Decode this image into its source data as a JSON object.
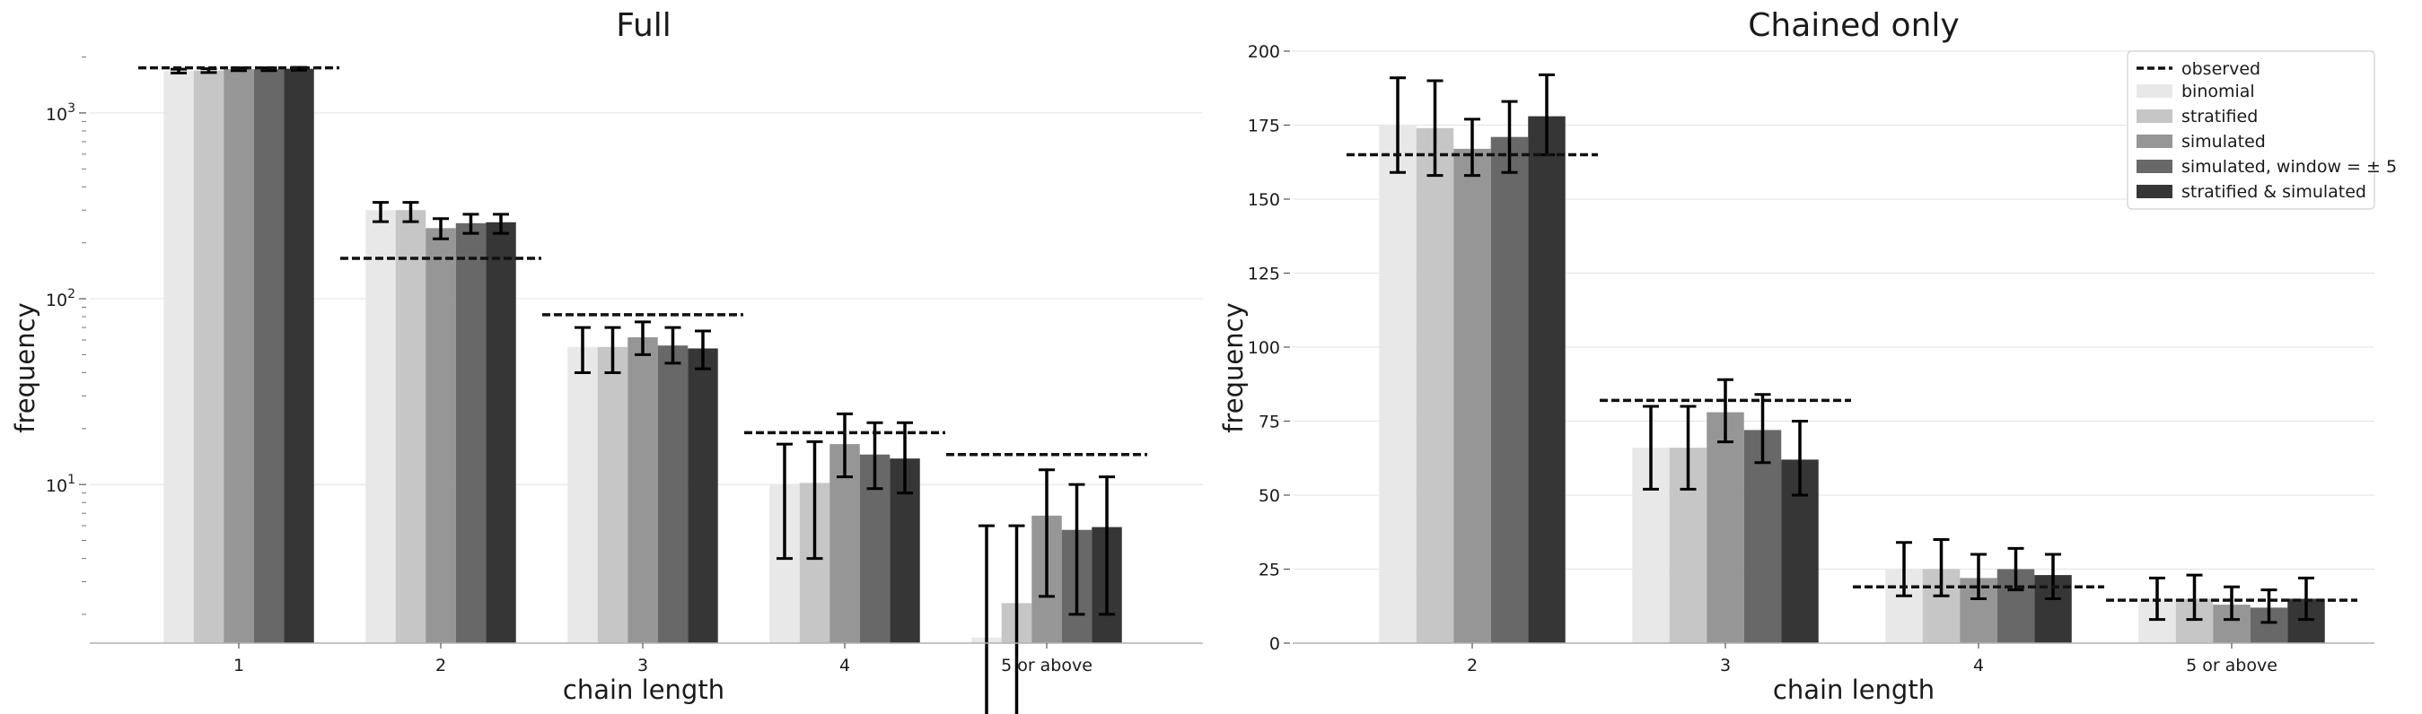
{
  "chart_data": [
    {
      "type": "bar",
      "title": "Full",
      "xlabel": "chain length",
      "ylabel": "frequency",
      "yscale": "log",
      "ylim": [
        1.4,
        2200
      ],
      "grid": "horizontal",
      "categories": [
        "1",
        "2",
        "3",
        "4",
        "5 or above"
      ],
      "ytick_labels": [
        {
          "value": 1000,
          "base": "10",
          "exp": "3"
        },
        {
          "value": 100,
          "base": "10",
          "exp": "2"
        },
        {
          "value": 10,
          "base": "10",
          "exp": "1"
        }
      ],
      "series": [
        {
          "name": "binomial",
          "color": "#e8e8e8",
          "values": [
            1680,
            300,
            55,
            10,
            1.5
          ],
          "err_low": [
            1640,
            260,
            40,
            4,
            0.5
          ],
          "err_high": [
            1720,
            330,
            70,
            16.5,
            6
          ]
        },
        {
          "name": "stratified",
          "color": "#c6c6c6",
          "values": [
            1690,
            300,
            55,
            10.2,
            2.3
          ],
          "err_low": [
            1650,
            260,
            40,
            4,
            0.5
          ],
          "err_high": [
            1730,
            330,
            70,
            17,
            6
          ]
        },
        {
          "name": "simulated",
          "color": "#969696",
          "values": [
            1720,
            240,
            62,
            16.5,
            6.8
          ],
          "err_low": [
            1690,
            210,
            50,
            11,
            2.5
          ],
          "err_high": [
            1750,
            270,
            75,
            24,
            12
          ]
        },
        {
          "name": "simulated, window = ± 5",
          "color": "#686868",
          "values": [
            1720,
            255,
            56,
            14.5,
            5.7
          ],
          "err_low": [
            1690,
            225,
            45,
            9.5,
            2
          ],
          "err_high": [
            1750,
            285,
            70,
            21.5,
            10
          ]
        },
        {
          "name": "stratified & simulated",
          "color": "#363636",
          "values": [
            1730,
            258,
            54,
            13.8,
            5.9
          ],
          "err_low": [
            1700,
            225,
            42,
            9,
            2
          ],
          "err_high": [
            1760,
            285,
            67,
            21.5,
            11
          ]
        }
      ],
      "observed": [
        1750,
        165,
        82,
        19,
        14.5
      ]
    },
    {
      "type": "bar",
      "title": "Chained only",
      "xlabel": "chain length",
      "ylabel": "frequency",
      "ylim": [
        0,
        200
      ],
      "yticks": [
        0,
        25,
        50,
        75,
        100,
        125,
        150,
        175,
        200
      ],
      "grid": "horizontal",
      "legend_position": "top-right",
      "categories": [
        "2",
        "3",
        "4",
        "5 or above"
      ],
      "series": [
        {
          "name": "binomial",
          "color": "#e8e8e8",
          "values": [
            175,
            66,
            25,
            15
          ],
          "err_low": [
            159,
            52,
            16,
            8
          ],
          "err_high": [
            191,
            80,
            34,
            22
          ]
        },
        {
          "name": "stratified",
          "color": "#c6c6c6",
          "values": [
            174,
            66,
            25,
            15
          ],
          "err_low": [
            158,
            52,
            16,
            8
          ],
          "err_high": [
            190,
            80,
            35,
            23
          ]
        },
        {
          "name": "simulated",
          "color": "#969696",
          "values": [
            167,
            78,
            22,
            13
          ],
          "err_low": [
            158,
            68,
            15,
            8
          ],
          "err_high": [
            177,
            89,
            30,
            19
          ]
        },
        {
          "name": "simulated, window = ± 5",
          "color": "#686868",
          "values": [
            171,
            72,
            25,
            12
          ],
          "err_low": [
            159,
            61,
            18,
            7
          ],
          "err_high": [
            183,
            84,
            32,
            18
          ]
        },
        {
          "name": "stratified & simulated",
          "color": "#363636",
          "values": [
            178,
            62,
            23,
            15
          ],
          "err_low": [
            165,
            50,
            15,
            8
          ],
          "err_high": [
            192,
            75,
            30,
            22
          ]
        }
      ],
      "observed": [
        165,
        82,
        19,
        14.5
      ]
    }
  ],
  "legend": {
    "observed_label": "observed",
    "entries": [
      "binomial",
      "stratified",
      "simulated",
      "simulated, window = ± 5",
      "stratified & simulated"
    ]
  }
}
